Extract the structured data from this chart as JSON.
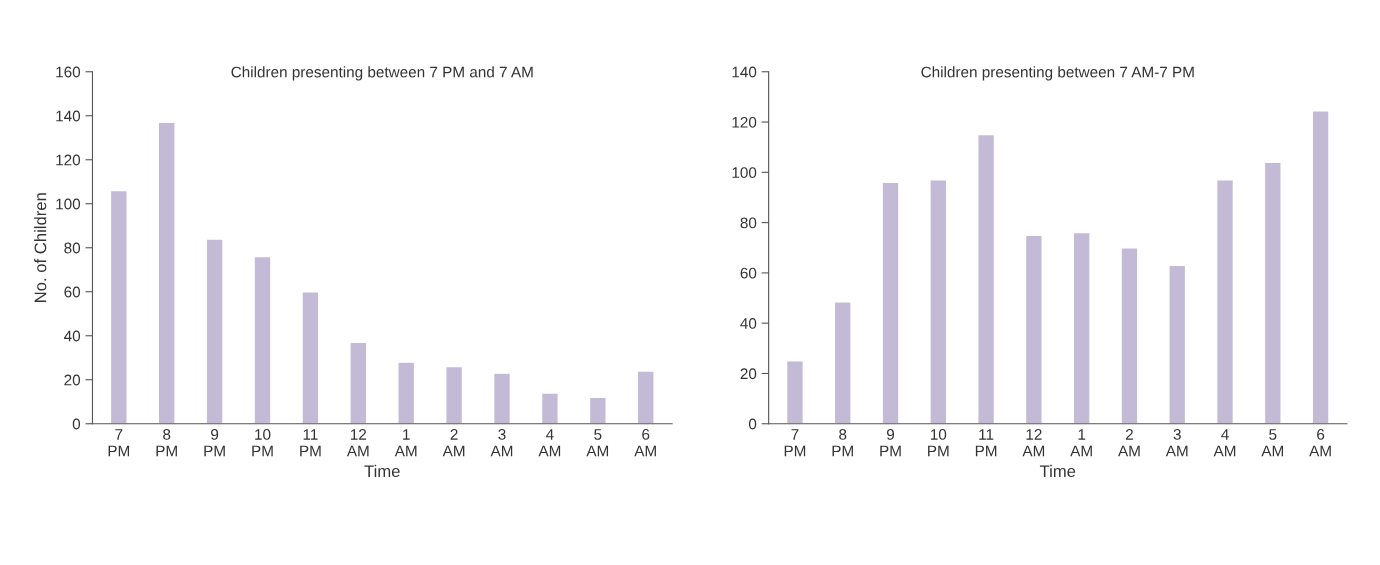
{
  "chart_data": [
    {
      "type": "bar",
      "title": "Children presenting between 7 PM and 7 AM",
      "xlabel": "Time",
      "ylabel": "No. of Children",
      "categories": [
        "7\nPM",
        "8\nPM",
        "9\nPM",
        "10\nPM",
        "11\nPM",
        "12\nAM",
        "1\nAM",
        "2\nAM",
        "3\nAM",
        "4\nAM",
        "5\nAM",
        "6\nAM"
      ],
      "values": [
        106,
        137,
        84,
        76,
        60,
        37,
        28,
        26,
        23,
        14,
        12,
        24
      ],
      "color": "#c3bbd6",
      "ylim": [
        0,
        160
      ],
      "yticks": [
        0,
        20,
        40,
        60,
        80,
        100,
        120,
        140,
        160
      ],
      "grid": false
    },
    {
      "type": "bar",
      "title": "Children presenting between 7 AM-7 PM",
      "xlabel": "Time",
      "categories": [
        "7\nPM",
        "8\nPM",
        "9\nPM",
        "10\nPM",
        "11\nPM",
        "12\nAM",
        "1\nAM",
        "2\nAM",
        "3\nAM",
        "4\nAM",
        "5\nAM",
        "6\nAM"
      ],
      "values": [
        25,
        48.5,
        96,
        97,
        115,
        75,
        76,
        70,
        63,
        97,
        104,
        124.5
      ],
      "color": "#c3bbd6",
      "ylim": [
        0,
        140
      ],
      "yticks": [
        0,
        20,
        40,
        60,
        80,
        100,
        120,
        140
      ],
      "grid": false
    }
  ]
}
